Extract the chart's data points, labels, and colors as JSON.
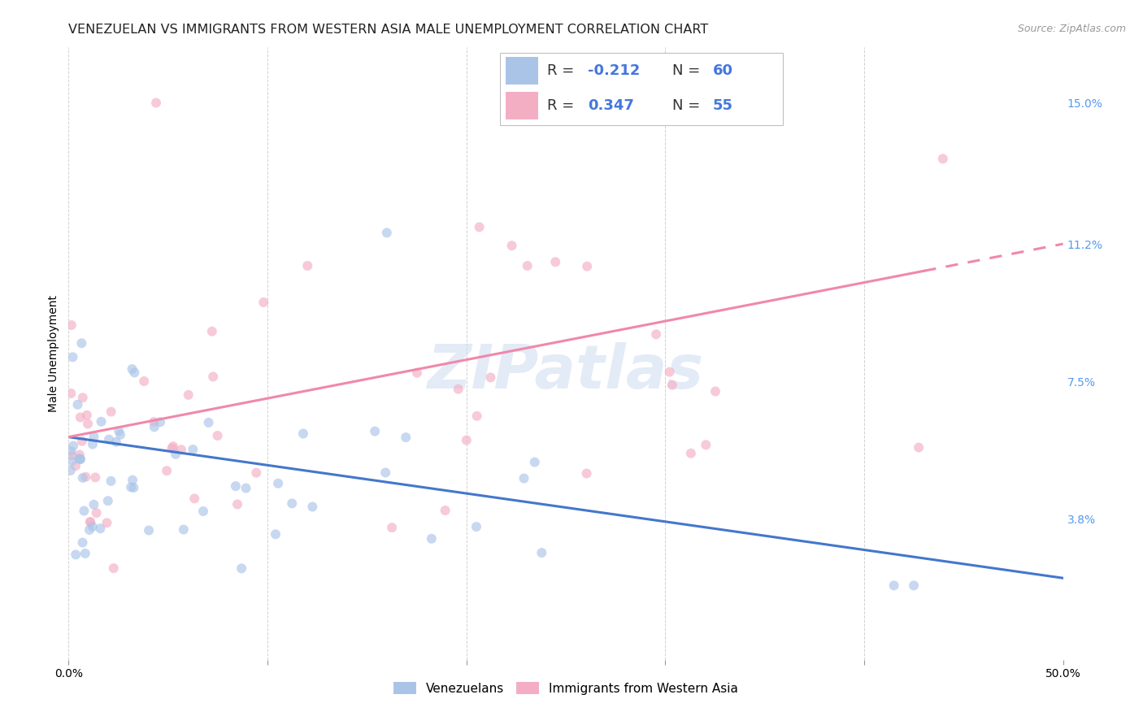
{
  "title": "VENEZUELAN VS IMMIGRANTS FROM WESTERN ASIA MALE UNEMPLOYMENT CORRELATION CHART",
  "source": "Source: ZipAtlas.com",
  "ylabel": "Male Unemployment",
  "xlim": [
    0.0,
    0.5
  ],
  "ylim": [
    0.0,
    0.165
  ],
  "yticks": [
    0.038,
    0.075,
    0.112,
    0.15
  ],
  "ytick_labels": [
    "3.8%",
    "7.5%",
    "11.2%",
    "15.0%"
  ],
  "xtick_labels": [
    "0.0%",
    "50.0%"
  ],
  "venezuelan_color": "#aac4e8",
  "western_asia_color": "#f4aec4",
  "line_venezuelan_color": "#4477cc",
  "line_western_asia_color": "#f088aa",
  "R_venezuelan": -0.212,
  "N_venezuelan": 60,
  "R_western_asia": 0.347,
  "N_western_asia": 55,
  "legend_label_1": "Venezuelans",
  "legend_label_2": "Immigrants from Western Asia",
  "watermark": "ZIPatlas",
  "background_color": "#ffffff",
  "grid_color": "#cccccc",
  "title_fontsize": 11.5,
  "axis_label_fontsize": 10,
  "tick_fontsize": 10,
  "marker_size": 75,
  "marker_alpha": 0.65,
  "right_ytick_color": "#5599ee",
  "legend_text_color": "#333333",
  "legend_value_color": "#4477dd"
}
